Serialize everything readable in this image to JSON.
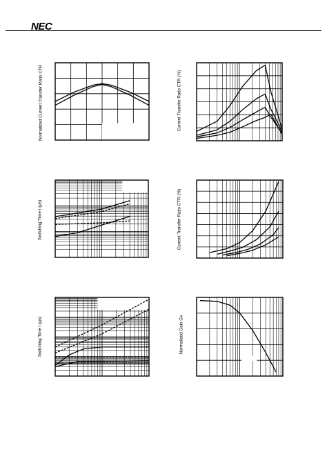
{
  "header": {
    "brand": "NEC"
  },
  "chart_data": [
    {
      "type": "line",
      "ylabel": "Normalized Current Transfer Ratio  CTR",
      "xlim": [
        0,
        1
      ],
      "ylim": [
        0,
        1
      ],
      "grid": true,
      "x_divisions": 6,
      "y_divisions": 5,
      "series": [
        {
          "x": [
            0.0,
            0.2,
            0.4,
            0.5,
            0.6,
            0.8,
            1.0
          ],
          "y": [
            0.5,
            0.62,
            0.71,
            0.73,
            0.71,
            0.62,
            0.5
          ]
        },
        {
          "x": [
            0.0,
            0.2,
            0.4,
            0.5,
            0.6,
            0.8,
            1.0
          ],
          "y": [
            0.45,
            0.58,
            0.69,
            0.72,
            0.69,
            0.58,
            0.45
          ]
        }
      ],
      "blank_region": {
        "x": [
          0.5,
          1.0
        ],
        "y": [
          0.0,
          0.22
        ]
      }
    },
    {
      "type": "line",
      "ylabel": "Current Transfer Ratio  CTR (%)",
      "xscale": "log",
      "xlim": [
        0.1,
        10
      ],
      "ylim": [
        0,
        1
      ],
      "grid": true,
      "y_divisions": 6,
      "series": [
        {
          "x": [
            0.1,
            0.3,
            0.6,
            1.2,
            2.5,
            4.0,
            5.5,
            10
          ],
          "y": [
            0.12,
            0.25,
            0.45,
            0.7,
            0.9,
            0.97,
            0.62,
            0.15
          ]
        },
        {
          "x": [
            0.1,
            0.3,
            0.6,
            1.2,
            2.5,
            4.0,
            5.5,
            10
          ],
          "y": [
            0.07,
            0.14,
            0.25,
            0.4,
            0.54,
            0.6,
            0.4,
            0.12
          ]
        },
        {
          "x": [
            0.1,
            0.3,
            0.6,
            1.2,
            2.5,
            4.0,
            5.5,
            10
          ],
          "y": [
            0.05,
            0.1,
            0.17,
            0.27,
            0.37,
            0.43,
            0.3,
            0.1
          ]
        },
        {
          "x": [
            0.1,
            0.3,
            0.6,
            1.2,
            2.5,
            4.0,
            5.5,
            10
          ],
          "y": [
            0.03,
            0.07,
            0.11,
            0.18,
            0.26,
            0.3,
            0.34,
            0.08
          ]
        }
      ]
    },
    {
      "type": "line",
      "ylabel": "Switching Time  t (µs)",
      "xscale": "log",
      "yscale": "log",
      "xlim": [
        1,
        100
      ],
      "ylim": [
        0.1,
        100
      ],
      "grid": true,
      "series": [
        {
          "dashed": true,
          "x": [
            1,
            10,
            40
          ],
          "y": [
            3.2,
            6,
            12
          ]
        },
        {
          "dashed": false,
          "x": [
            1,
            10,
            40
          ],
          "y": [
            3.8,
            7.5,
            16
          ]
        },
        {
          "dashed": true,
          "x": [
            1,
            10,
            40
          ],
          "y": [
            1.9,
            2.2,
            2.6
          ]
        },
        {
          "dashed": false,
          "x": [
            1,
            3,
            10,
            40
          ],
          "y": [
            0.65,
            0.9,
            1.8,
            3.9
          ]
        }
      ],
      "blank_region": {
        "x": [
          0.72,
          1.0
        ],
        "y": [
          0.84,
          1.0
        ]
      }
    },
    {
      "type": "line",
      "ylabel": "Current Transfer Ratio  CTR (%)",
      "xscale": "log",
      "xlim": [
        0.1,
        10
      ],
      "ylim": [
        0,
        1
      ],
      "grid": true,
      "y_divisions": 7,
      "series": [
        {
          "x": [
            0.2,
            0.5,
            1,
            2,
            4,
            8
          ],
          "y": [
            0.07,
            0.12,
            0.2,
            0.35,
            0.6,
            0.98
          ]
        },
        {
          "x": [
            0.3,
            0.6,
            1.2,
            2.5,
            5,
            8
          ],
          "y": [
            0.05,
            0.09,
            0.14,
            0.24,
            0.4,
            0.6
          ]
        },
        {
          "x": [
            0.4,
            0.8,
            1.5,
            3,
            6,
            8
          ],
          "y": [
            0.04,
            0.07,
            0.11,
            0.18,
            0.3,
            0.39
          ]
        },
        {
          "x": [
            0.5,
            1,
            2,
            4,
            8
          ],
          "y": [
            0.03,
            0.06,
            0.1,
            0.17,
            0.27
          ]
        }
      ]
    },
    {
      "type": "line",
      "ylabel": "Switching Time  t (µs)",
      "xscale": "log",
      "yscale": "log",
      "xlim": [
        0.1,
        10
      ],
      "ylim": [
        0.1,
        1000
      ],
      "grid": true,
      "series": [
        {
          "dashed": true,
          "x": [
            0.1,
            1,
            10
          ],
          "y": [
            3,
            40,
            800
          ]
        },
        {
          "dashed": true,
          "x": [
            0.1,
            1,
            10
          ],
          "y": [
            1.5,
            14,
            250
          ]
        },
        {
          "dashed": false,
          "x": [
            0.1,
            0.2,
            0.4,
            1,
            10
          ],
          "y": [
            0.35,
            1.2,
            2.4,
            3.0,
            3.0
          ]
        },
        {
          "dashed": true,
          "x": [
            0.1,
            1,
            10
          ],
          "y": [
            0.9,
            0.9,
            0.9
          ]
        },
        {
          "dashed": false,
          "x": [
            0.1,
            0.3,
            10
          ],
          "y": [
            0.3,
            0.55,
            0.6
          ]
        },
        {
          "dashed": true,
          "x": [
            0.1,
            10
          ],
          "y": [
            0.5,
            0.5
          ]
        },
        {
          "dashed": false,
          "x": [
            0.1,
            10
          ],
          "y": [
            0.42,
            0.42
          ]
        }
      ],
      "blank_region": {
        "x": [
          0.45,
          1.0
        ],
        "y": [
          0.84,
          1.0
        ]
      }
    },
    {
      "type": "line",
      "ylabel": "Normalized Gain  Gv",
      "xscale": "log",
      "xlim": [
        0.1,
        10
      ],
      "ylim": [
        0,
        1
      ],
      "grid": true,
      "y_divisions": 5,
      "series": [
        {
          "x": [
            0.12,
            0.3,
            0.6,
            1.0,
            2.0,
            4.0,
            7.0
          ],
          "y": [
            0.96,
            0.95,
            0.9,
            0.8,
            0.58,
            0.3,
            0.05
          ]
        }
      ],
      "blank_region": {
        "x": [
          0.52,
          0.7
        ],
        "y": [
          0.19,
          0.26
        ]
      }
    }
  ]
}
